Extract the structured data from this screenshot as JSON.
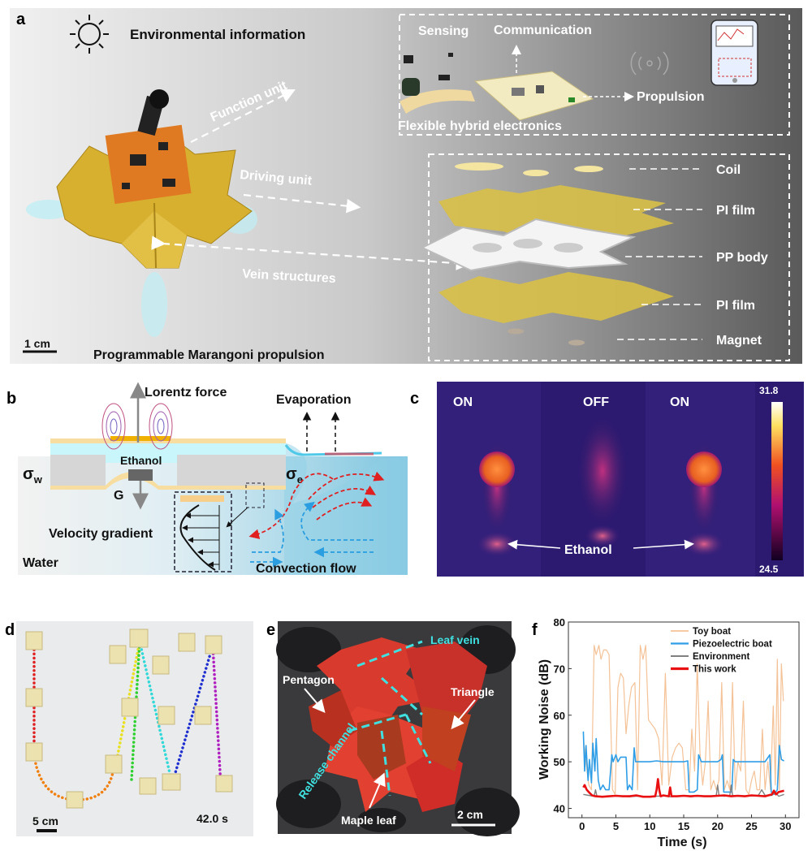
{
  "panel_labels": {
    "a": "a",
    "b": "b",
    "c": "c",
    "d": "d",
    "e": "e",
    "f": "f"
  },
  "panel_a": {
    "environmental": "Environmental information",
    "sensing": "Sensing",
    "communication": "Communication",
    "propulsion": "Propulsion",
    "fhe": "Flexible hybrid electronics",
    "function_unit": "Function unit",
    "driving_unit": "Driving unit",
    "vein_structures": "Vein structures",
    "layers": [
      "Coil",
      "PI film",
      "PP body",
      "PI film",
      "Magnet"
    ],
    "scale": "1 cm",
    "caption": "Programmable Marangoni propulsion"
  },
  "panel_b": {
    "lorentz": "Lorentz force",
    "evaporation": "Evaporation",
    "ethanol": "Ethanol",
    "sigma_w": "σ",
    "sigma_w_sub": "w",
    "sigma_e": "σ",
    "sigma_e_sub": "e",
    "g": "G",
    "velocity": "Velocity gradient",
    "water": "Water",
    "convection": "Convection flow"
  },
  "panel_c": {
    "states": [
      "ON",
      "OFF",
      "ON"
    ],
    "cbar_max": "31.8",
    "cbar_min": "24.5",
    "ethanol": "Ethanol"
  },
  "panel_d": {
    "scale": "5 cm",
    "time": "42.0 s"
  },
  "panel_e": {
    "leaf_vein": "Leaf vein",
    "pentagon": "Pentagon",
    "triangle": "Triangle",
    "release": "Release channel",
    "maple": "Maple leaf",
    "scale": "2 cm"
  },
  "chart_data": {
    "type": "line",
    "xlabel": "Time (s)",
    "ylabel": "Working Noise (dB)",
    "xlim": [
      -2,
      32
    ],
    "ylim": [
      38,
      80
    ],
    "xticks": [
      "0",
      "5",
      "10",
      "15",
      "20",
      "25",
      "30"
    ],
    "yticks": [
      "40",
      "50",
      "60",
      "70",
      "80"
    ],
    "legend_position": "top-right",
    "series": [
      {
        "name": "Toy boat",
        "color": "#f4c296",
        "x": [
          0.2,
          0.6,
          1.0,
          1.4,
          1.8,
          2.1,
          2.5,
          2.8,
          3.2,
          3.6,
          4.0,
          4.5,
          4.9,
          5.3,
          5.7,
          6.1,
          6.5,
          6.9,
          7.3,
          7.8,
          8.2,
          8.6,
          9.0,
          9.4,
          9.8,
          10.3,
          10.8,
          11.3,
          11.8,
          12.3,
          12.8,
          13.3,
          13.8,
          14.3,
          14.8,
          15.3,
          15.8,
          16.2,
          16.6,
          17.0,
          17.4,
          17.8,
          18.2,
          18.6,
          19.0,
          19.4,
          19.8,
          20.2,
          20.6,
          21.0,
          21.4,
          21.8,
          22.2,
          22.6,
          23.0,
          23.4,
          23.8,
          24.2,
          24.6,
          25.0,
          25.4,
          25.8,
          26.2,
          26.6,
          27.0,
          27.4,
          27.8,
          28.2,
          28.5,
          28.8,
          29.1,
          29.4,
          29.7
        ],
        "y": [
          55,
          50,
          45,
          44,
          75,
          73,
          75,
          72,
          74,
          74,
          73,
          44,
          43,
          66,
          69,
          68,
          56,
          62,
          66,
          67,
          44,
          75,
          72,
          75,
          59,
          58,
          57,
          55,
          45,
          69,
          45,
          51,
          53,
          54,
          53,
          44,
          44,
          57,
          48,
          71,
          52,
          45,
          50,
          63,
          44,
          46,
          44,
          46,
          67,
          44,
          46,
          44,
          67,
          44,
          50,
          48,
          63,
          44,
          43,
          46,
          48,
          44,
          44,
          57,
          44,
          50,
          44,
          62,
          45,
          72,
          44,
          71,
          63
        ]
      },
      {
        "name": "Piezoelectric boat",
        "color": "#2f9ee6",
        "x": [
          0.2,
          0.4,
          0.6,
          0.9,
          1.1,
          1.4,
          1.6,
          1.9,
          2.1,
          2.4,
          2.7,
          3.1,
          3.5,
          4.0,
          4.4,
          4.6,
          5.0,
          5.3,
          5.7,
          6.5,
          6.7,
          7.0,
          7.4,
          7.7,
          7.9,
          8.3,
          9,
          10,
          11,
          12,
          13,
          14,
          15,
          15.6,
          15.8,
          16.5,
          17.0,
          17.2,
          17.6,
          18,
          19,
          20,
          20.5,
          20.7,
          20.9,
          21.5,
          22.1,
          22.3,
          22.6,
          23,
          24,
          25,
          26,
          27,
          27.7,
          27.9,
          28.3,
          28.8,
          29.1,
          29.4,
          29.8
        ],
        "y": [
          56.5,
          48,
          53.5,
          46,
          50.5,
          45.5,
          54,
          48,
          55,
          46,
          44,
          45,
          44,
          44,
          51.5,
          50,
          51.5,
          50,
          51,
          51,
          44,
          45,
          44,
          53,
          50,
          50,
          50,
          50,
          50.2,
          50,
          50,
          50,
          50,
          50.2,
          43.5,
          43.5,
          44,
          51.5,
          50,
          50,
          50,
          50,
          50.5,
          51.5,
          43.5,
          43.5,
          43.5,
          50.5,
          50,
          50,
          50,
          50,
          50,
          50,
          51.5,
          43.5,
          43,
          44,
          53.5,
          50.5,
          50.2
        ]
      },
      {
        "name": "Environment",
        "color": "#808080",
        "x": [
          0.2,
          1,
          1.8,
          2,
          2.2,
          3,
          4,
          5,
          6,
          7,
          8,
          9,
          10,
          11,
          12,
          13,
          14,
          15,
          16,
          17,
          18,
          19,
          19.8,
          20,
          20.2,
          21,
          21.8,
          22,
          22.2,
          23,
          24,
          25,
          26,
          26.5,
          27,
          28,
          28.5,
          29,
          29.8
        ],
        "y": [
          43,
          42.8,
          42.6,
          44,
          42.6,
          42.5,
          42.6,
          42.7,
          42.6,
          42.5,
          42.6,
          42.6,
          42.5,
          42.6,
          42.7,
          42.5,
          42.6,
          42.7,
          42.5,
          42.6,
          42.6,
          42.6,
          42.8,
          45,
          42.8,
          42.6,
          42.8,
          45,
          42.8,
          42.6,
          42.6,
          42.7,
          42.8,
          44,
          42.8,
          42.8,
          43.5,
          42.6,
          43
        ]
      },
      {
        "name": "This work",
        "color": "#e81010",
        "x": [
          0.2,
          0.4,
          0.7,
          1.0,
          1.5,
          2,
          3,
          4,
          5,
          6,
          7,
          8,
          9,
          10,
          10.8,
          11.0,
          11.2,
          11.4,
          11.6,
          12,
          12.8,
          13,
          13.2,
          14,
          15,
          16,
          17,
          18,
          19,
          20,
          21,
          22,
          23,
          24,
          25,
          26,
          27,
          28,
          28.3,
          28.6,
          29,
          29.8
        ],
        "y": [
          44.5,
          45,
          44,
          43.5,
          42.8,
          42.6,
          42.5,
          42.6,
          42.7,
          42.6,
          42.6,
          42.8,
          42.5,
          42.5,
          42.6,
          44,
          46.3,
          44,
          42.6,
          42.8,
          42.6,
          44.5,
          42.6,
          42.6,
          42.7,
          42.6,
          42.7,
          42.6,
          42.6,
          42.7,
          42.8,
          42.6,
          42.7,
          42.6,
          42.8,
          42.7,
          42.6,
          43,
          43.8,
          43,
          43.5,
          43.8
        ]
      }
    ]
  }
}
